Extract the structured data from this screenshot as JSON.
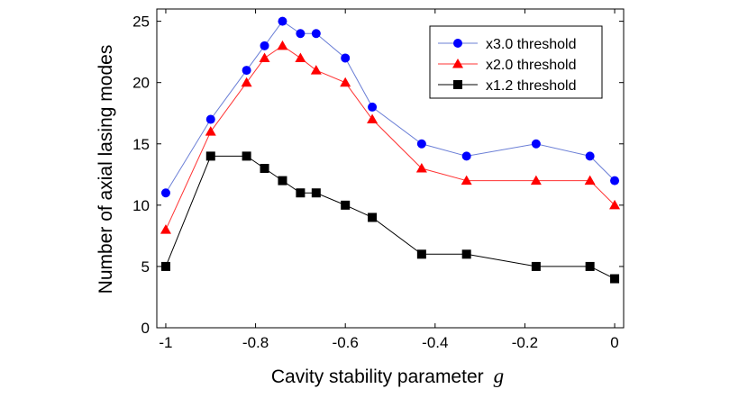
{
  "chart_data": {
    "type": "line",
    "title": "",
    "xlabel": "Cavity stability parameter",
    "xlabel_symbol": "g",
    "ylabel": "Number of axial lasing modes",
    "xlim": [
      -1.02,
      0.02
    ],
    "ylim": [
      0,
      26
    ],
    "grid": false,
    "legend_position": "top-right",
    "x_ticks": [
      -1,
      -0.8,
      -0.6,
      -0.4,
      -0.2,
      0
    ],
    "x_tick_labels": [
      "-1",
      "-0.8",
      "-0.6",
      "-0.4",
      "-0.2",
      "0"
    ],
    "y_ticks": [
      0,
      5,
      10,
      15,
      20,
      25
    ],
    "y_tick_labels": [
      "0",
      "5",
      "10",
      "15",
      "20",
      "25"
    ],
    "series": [
      {
        "name": "x3.0 threshold",
        "color": "#0000ff",
        "line_color": "#6b7fd6",
        "marker": "circle",
        "x": [
          -1,
          -0.9,
          -0.82,
          -0.78,
          -0.74,
          -0.7,
          -0.665,
          -0.6,
          -0.54,
          -0.43,
          -0.33,
          -0.175,
          -0.055,
          0
        ],
        "y": [
          11,
          17,
          21,
          23,
          25,
          24,
          24,
          22,
          18,
          15,
          14,
          15,
          14,
          12
        ]
      },
      {
        "name": "x2.0 threshold",
        "color": "#ff0000",
        "line_color": "#ff3333",
        "marker": "triangle",
        "x": [
          -1,
          -0.9,
          -0.82,
          -0.78,
          -0.74,
          -0.7,
          -0.665,
          -0.6,
          -0.54,
          -0.43,
          -0.33,
          -0.175,
          -0.055,
          0
        ],
        "y": [
          8,
          16,
          20,
          22,
          23,
          22,
          21,
          20,
          17,
          13,
          12,
          12,
          12,
          10
        ]
      },
      {
        "name": "x1.2 threshold",
        "color": "#000000",
        "line_color": "#000000",
        "marker": "square",
        "x": [
          -1,
          -0.9,
          -0.82,
          -0.78,
          -0.74,
          -0.7,
          -0.665,
          -0.6,
          -0.54,
          -0.43,
          -0.33,
          -0.175,
          -0.055,
          0
        ],
        "y": [
          5,
          14,
          14,
          13,
          12,
          11,
          11,
          10,
          9,
          6,
          6,
          5,
          5,
          4
        ]
      }
    ]
  }
}
